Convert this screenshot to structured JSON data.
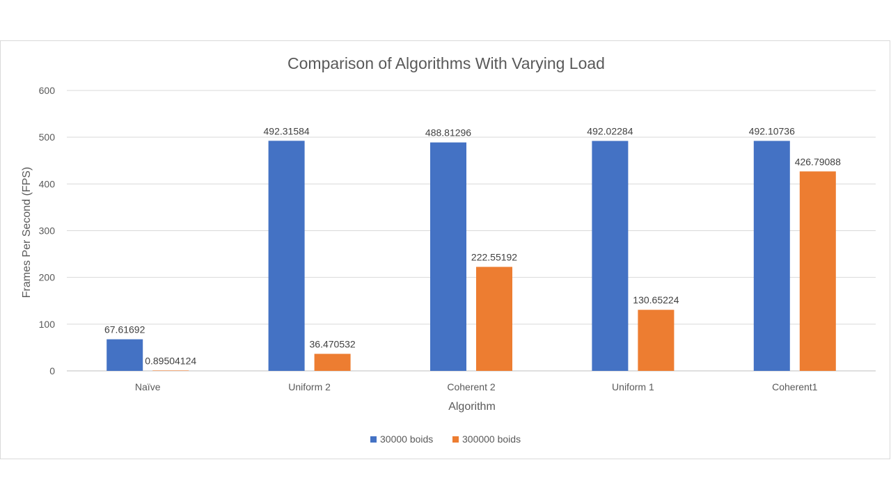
{
  "chart_data": {
    "type": "bar",
    "title": "Comparison of Algorithms With Varying Load",
    "xlabel": "Algorithm",
    "ylabel": "Frames Per Second (FPS)",
    "ylim": [
      0,
      600
    ],
    "yticks": [
      0,
      100,
      200,
      300,
      400,
      500,
      600
    ],
    "ytick_labels": [
      "0",
      "100",
      "200",
      "300",
      "400",
      "500",
      "600"
    ],
    "categories": [
      "Naïve",
      "Uniform 2",
      "Coherent 2",
      "Uniform 1",
      "Coherent1"
    ],
    "series": [
      {
        "name": "30000 boids",
        "color": "#4472c4",
        "values": [
          67.61692,
          492.31584,
          488.81296,
          492.02284,
          492.10736
        ],
        "labels": [
          "67.61692",
          "492.31584",
          "488.81296",
          "492.02284",
          "492.10736"
        ]
      },
      {
        "name": "300000 boids",
        "color": "#ed7d31",
        "values": [
          0.89504124,
          36.470532,
          222.55192,
          130.65224,
          426.79088
        ],
        "labels": [
          "0.89504124",
          "36.470532",
          "222.55192",
          "130.65224",
          "426.79088"
        ]
      }
    ],
    "grid": true,
    "legend": "bottom-center"
  }
}
